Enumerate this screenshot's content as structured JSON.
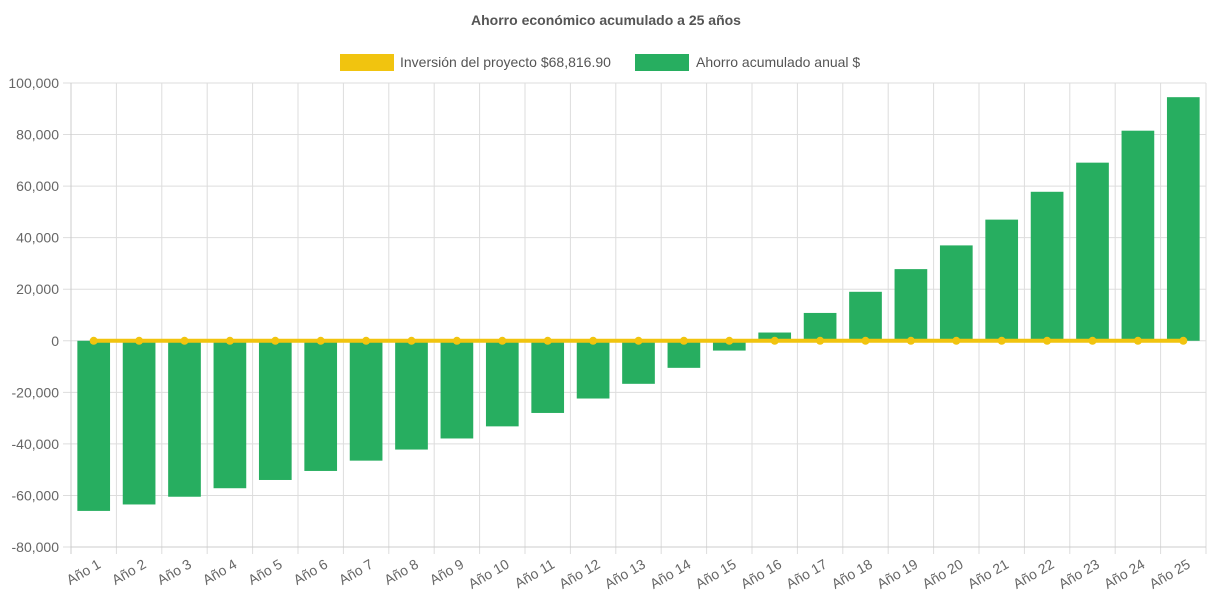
{
  "chart_data": {
    "type": "bar",
    "title": "Ahorro económico acumulado a 25 años",
    "categories": [
      "Año 1",
      "Año 2",
      "Año 3",
      "Año 4",
      "Año 5",
      "Año 6",
      "Año 7",
      "Año 8",
      "Año 9",
      "Año 10",
      "Año 11",
      "Año 12",
      "Año 13",
      "Año 14",
      "Año 15",
      "Año 16",
      "Año 17",
      "Año 18",
      "Año 19",
      "Año 20",
      "Año 21",
      "Año 22",
      "Año 23",
      "Año 24",
      "Año 25"
    ],
    "series": [
      {
        "name": "Inversión del proyecto $68,816.90",
        "type": "line",
        "color": "#f1c40f",
        "values": [
          0,
          0,
          0,
          0,
          0,
          0,
          0,
          0,
          0,
          0,
          0,
          0,
          0,
          0,
          0,
          0,
          0,
          0,
          0,
          0,
          0,
          0,
          0,
          0,
          0
        ]
      },
      {
        "name": "Ahorro acumulado anual $",
        "type": "bar",
        "color": "#27ae60",
        "values": [
          -66000,
          -63500,
          -60500,
          -57200,
          -54000,
          -50500,
          -46500,
          -42200,
          -37900,
          -33200,
          -28000,
          -22400,
          -16700,
          -10500,
          -3800,
          3200,
          10800,
          19000,
          27800,
          37000,
          47000,
          57800,
          69100,
          81500,
          94500
        ]
      }
    ],
    "ylim": [
      -80000,
      100000
    ],
    "y_ticks": [
      100000,
      80000,
      60000,
      40000,
      20000,
      0,
      -20000,
      -40000,
      -60000,
      -80000
    ],
    "y_tick_labels": [
      "100,000",
      "80,000",
      "60,000",
      "40,000",
      "20,000",
      "0",
      "-20,000",
      "-40,000",
      "-60,000",
      "-80,000"
    ],
    "grid": true,
    "legend_position": "top-center",
    "xlabel": "",
    "ylabel": ""
  }
}
